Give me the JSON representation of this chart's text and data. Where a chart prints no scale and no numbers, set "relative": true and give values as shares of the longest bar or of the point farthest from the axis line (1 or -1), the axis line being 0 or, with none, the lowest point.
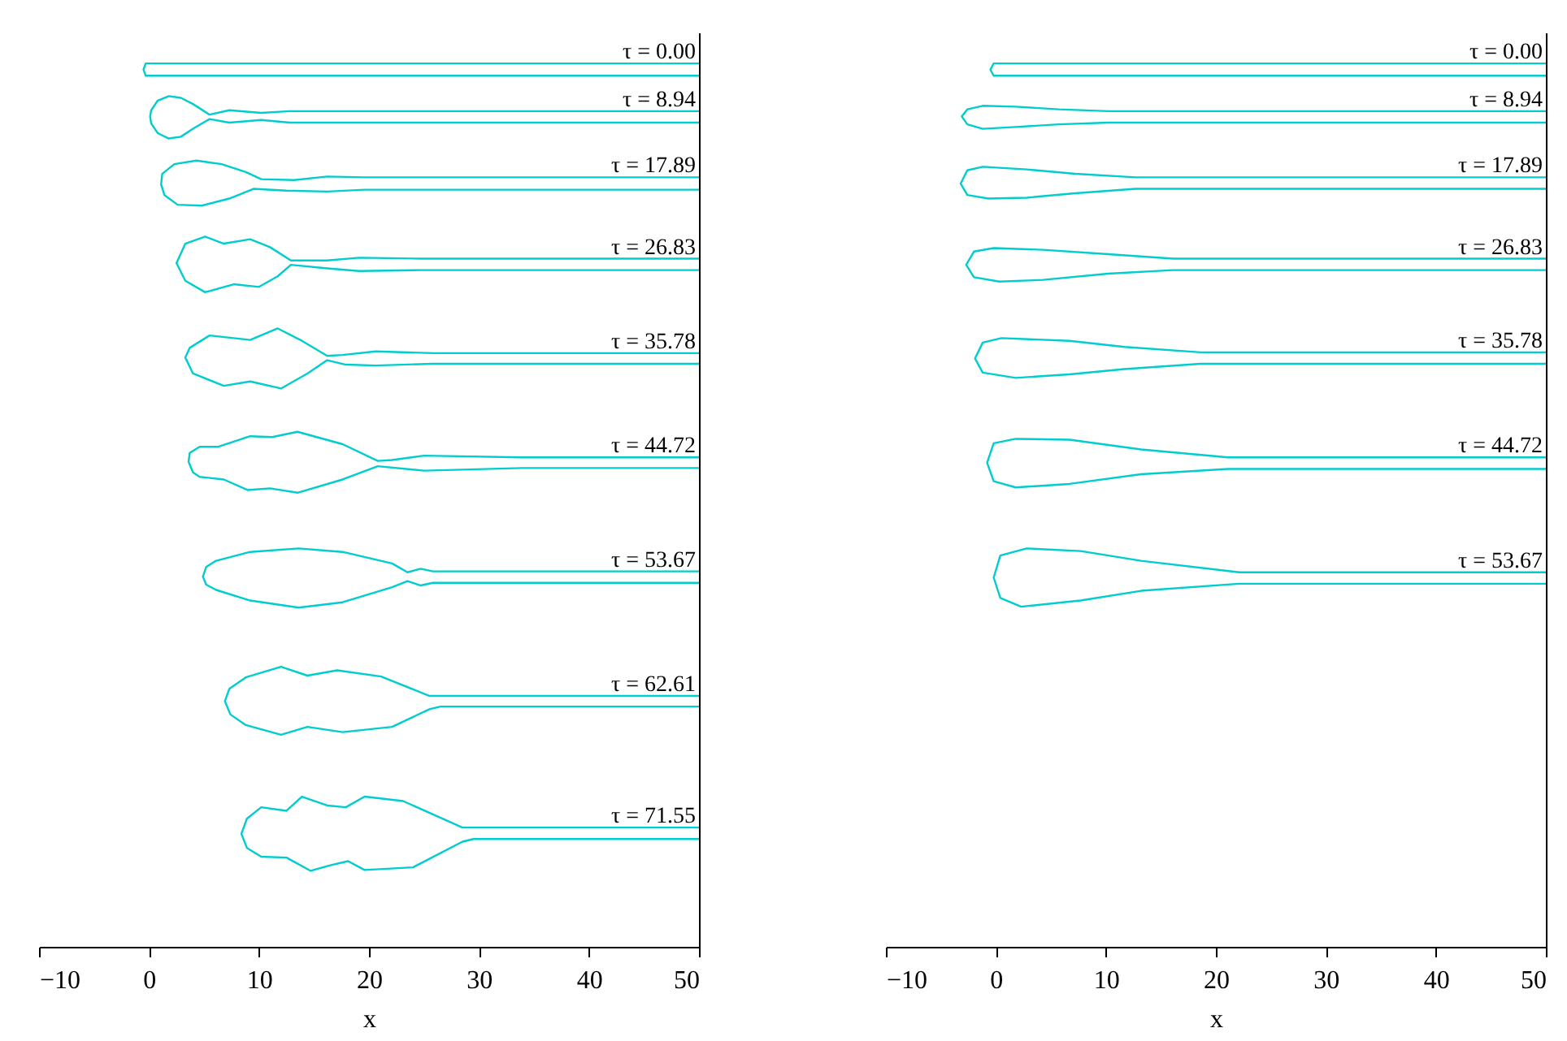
{
  "chart_data": [
    {
      "type": "line",
      "relative": true,
      "xlabel": "x",
      "xlim": [
        -10,
        50
      ],
      "xticks": [
        -10,
        0,
        10,
        20,
        30,
        40,
        50
      ],
      "series": [
        {
          "color": "#00cdcd",
          "x": [
            50,
            -0.3,
            -0.5,
            -0.3,
            50
          ],
          "values": [
            1,
            1,
            0.993,
            0.986,
            0.986
          ]
        },
        {
          "color": "#00cdcd",
          "x": [
            50,
            12.8,
            10.2,
            7.3,
            5.5,
            4.0,
            2.9,
            1.8,
            0.8,
            0.2,
            0.1,
            0.2,
            0.8,
            1.8,
            2.9,
            4.0,
            5.5,
            7.3,
            10.2,
            12.8,
            50
          ],
          "values": [
            0.946,
            0.946,
            0.944,
            0.947,
            0.942,
            0.954,
            0.961,
            0.963,
            0.958,
            0.947,
            0.94,
            0.932,
            0.921,
            0.915,
            0.917,
            0.926,
            0.937,
            0.933,
            0.936,
            0.933,
            0.933
          ]
        },
        {
          "color": "#00cdcd",
          "x": [
            50,
            19.6,
            16.2,
            13.2,
            10.2,
            8.8,
            6.6,
            4.3,
            2.3,
            1.2,
            1.1,
            1.4,
            2.6,
            4.8,
            7.3,
            9.5,
            12.5,
            16.2,
            19.6,
            50
          ],
          "values": [
            0.871,
            0.871,
            0.872,
            0.868,
            0.869,
            0.877,
            0.886,
            0.89,
            0.886,
            0.875,
            0.863,
            0.851,
            0.84,
            0.839,
            0.847,
            0.858,
            0.856,
            0.855,
            0.857,
            0.857
          ]
        },
        {
          "color": "#00cdcd",
          "x": [
            50,
            24.6,
            19.1,
            16.2,
            12.9,
            11.0,
            9.2,
            6.8,
            5.1,
            3.3,
            2.5,
            3.3,
            5.1,
            7.7,
            10.0,
            11.7,
            12.9,
            16.2,
            19.1,
            24.6,
            50
          ],
          "values": [
            0.779,
            0.779,
            0.78,
            0.777,
            0.777,
            0.792,
            0.801,
            0.796,
            0.804,
            0.796,
            0.774,
            0.754,
            0.741,
            0.75,
            0.747,
            0.759,
            0.772,
            0.768,
            0.765,
            0.766,
            0.766
          ]
        },
        {
          "color": "#00cdcd",
          "x": [
            50,
            25.8,
            20.6,
            17.6,
            16.2,
            13.9,
            11.7,
            9.2,
            5.5,
            3.7,
            3.3,
            4.0,
            6.8,
            9.2,
            12.0,
            14.4,
            16.2,
            17.9,
            20.6,
            25.8,
            50
          ],
          "values": [
            0.672,
            0.672,
            0.674,
            0.67,
            0.669,
            0.686,
            0.7,
            0.687,
            0.692,
            0.678,
            0.667,
            0.649,
            0.635,
            0.64,
            0.632,
            0.649,
            0.664,
            0.659,
            0.658,
            0.66,
            0.66
          ]
        },
        {
          "color": "#00cdcd",
          "x": [
            50,
            33.9,
            25.0,
            22.1,
            20.8,
            17.6,
            13.5,
            11.2,
            9.2,
            6.3,
            4.6,
            3.7,
            3.6,
            4.0,
            4.6,
            6.8,
            9.0,
            11.0,
            13.5,
            17.6,
            20.8,
            25.0,
            33.9,
            50
          ],
          "values": [
            0.554,
            0.554,
            0.556,
            0.551,
            0.55,
            0.569,
            0.583,
            0.577,
            0.578,
            0.566,
            0.566,
            0.559,
            0.549,
            0.537,
            0.532,
            0.529,
            0.517,
            0.519,
            0.514,
            0.529,
            0.544,
            0.539,
            0.542,
            0.542
          ]
        },
        {
          "color": "#00cdcd",
          "x": [
            50,
            25.8,
            24.7,
            23.5,
            22.1,
            17.6,
            13.6,
            9.2,
            6.1,
            5.2,
            4.9,
            5.2,
            6.1,
            9.2,
            13.6,
            17.6,
            22.1,
            23.5,
            24.7,
            25.8,
            50
          ],
          "values": [
            0.425,
            0.425,
            0.428,
            0.424,
            0.434,
            0.447,
            0.451,
            0.447,
            0.437,
            0.43,
            0.419,
            0.41,
            0.404,
            0.392,
            0.384,
            0.39,
            0.407,
            0.414,
            0.409,
            0.412,
            0.412
          ]
        },
        {
          "color": "#00cdcd",
          "x": [
            50,
            25.5,
            21.1,
            17.1,
            14.4,
            12.0,
            8.8,
            7.3,
            6.9,
            7.4,
            8.8,
            12.0,
            14.4,
            17.6,
            22.1,
            25.5,
            26.5,
            50
          ],
          "values": [
            0.284,
            0.284,
            0.306,
            0.313,
            0.307,
            0.317,
            0.305,
            0.292,
            0.278,
            0.263,
            0.251,
            0.24,
            0.249,
            0.243,
            0.249,
            0.269,
            0.272,
            0.272
          ]
        },
        {
          "color": "#00cdcd",
          "x": [
            50,
            28.5,
            23.1,
            19.6,
            17.9,
            16.2,
            13.9,
            12.5,
            10.2,
            8.9,
            8.4,
            8.9,
            10.2,
            12.5,
            14.7,
            16.4,
            18.1,
            19.6,
            24.0,
            28.5,
            29.5,
            50
          ],
          "values": [
            0.135,
            0.135,
            0.165,
            0.17,
            0.158,
            0.16,
            0.17,
            0.154,
            0.158,
            0.145,
            0.128,
            0.112,
            0.102,
            0.101,
            0.086,
            0.092,
            0.097,
            0.087,
            0.09,
            0.119,
            0.122,
            0.122
          ]
        }
      ],
      "annotations": [
        "τ = 0.00",
        "τ = 8.94",
        "τ = 17.89",
        "τ = 26.83",
        "τ = 35.78",
        "τ = 44.72",
        "τ = 53.67",
        "τ = 62.61",
        "τ = 71.55"
      ]
    },
    {
      "type": "line",
      "relative": true,
      "xlabel": "x",
      "xlim": [
        -10,
        50
      ],
      "xticks": [
        -10,
        0,
        10,
        20,
        30,
        40,
        50
      ],
      "series": [
        {
          "color": "#00cdcd",
          "x": [
            50,
            -0.2,
            -0.5,
            -0.2,
            50
          ],
          "values": [
            1,
            1,
            0.993,
            0.986,
            0.986
          ]
        },
        {
          "color": "#00cdcd",
          "x": [
            50,
            10.2,
            5.7,
            1.8,
            -1.2,
            -2.6,
            -3.1,
            -2.6,
            -1.2,
            1.8,
            5.7,
            10.2,
            50
          ],
          "values": [
            0.946,
            0.946,
            0.948,
            0.951,
            0.952,
            0.948,
            0.94,
            0.931,
            0.926,
            0.928,
            0.931,
            0.933,
            0.933
          ]
        },
        {
          "color": "#00cdcd",
          "x": [
            50,
            12.7,
            7.2,
            2.8,
            -1.2,
            -2.6,
            -3.2,
            -2.6,
            -0.7,
            2.8,
            7.2,
            12.7,
            50
          ],
          "values": [
            0.871,
            0.871,
            0.875,
            0.88,
            0.883,
            0.879,
            0.864,
            0.851,
            0.847,
            0.848,
            0.853,
            0.858,
            0.858
          ]
        },
        {
          "color": "#00cdcd",
          "x": [
            50,
            16.1,
            10.2,
            4.3,
            -0.2,
            -2.0,
            -2.7,
            -2.0,
            0.3,
            4.3,
            10.2,
            16.1,
            50
          ],
          "values": [
            0.779,
            0.779,
            0.784,
            0.789,
            0.791,
            0.787,
            0.772,
            0.758,
            0.753,
            0.755,
            0.762,
            0.766,
            0.766
          ]
        },
        {
          "color": "#00cdcd",
          "x": [
            50,
            18.6,
            11.7,
            6.7,
            0.5,
            -1.2,
            -1.9,
            -1.2,
            1.8,
            6.7,
            11.7,
            18.6,
            50
          ],
          "values": [
            0.673,
            0.673,
            0.679,
            0.686,
            0.689,
            0.684,
            0.666,
            0.65,
            0.644,
            0.648,
            0.654,
            0.66,
            0.66
          ]
        },
        {
          "color": "#00cdcd",
          "x": [
            50,
            21.1,
            13.2,
            6.7,
            1.8,
            -0.2,
            -0.8,
            -0.2,
            1.8,
            6.7,
            13.2,
            21.1,
            50
          ],
          "values": [
            0.554,
            0.554,
            0.563,
            0.574,
            0.575,
            0.57,
            0.548,
            0.527,
            0.52,
            0.524,
            0.535,
            0.541,
            0.541
          ]
        },
        {
          "color": "#00cdcd",
          "x": [
            50,
            22.1,
            13.2,
            7.7,
            2.8,
            0.4,
            -0.2,
            0.4,
            2.3,
            7.7,
            13.2,
            22.1,
            50
          ],
          "values": [
            0.424,
            0.424,
            0.437,
            0.448,
            0.451,
            0.443,
            0.418,
            0.395,
            0.385,
            0.392,
            0.403,
            0.411,
            0.411
          ]
        }
      ],
      "annotations": [
        "τ = 0.00",
        "τ = 8.94",
        "τ = 17.89",
        "τ = 26.83",
        "τ = 35.78",
        "τ = 44.72",
        "τ = 53.67"
      ]
    }
  ]
}
